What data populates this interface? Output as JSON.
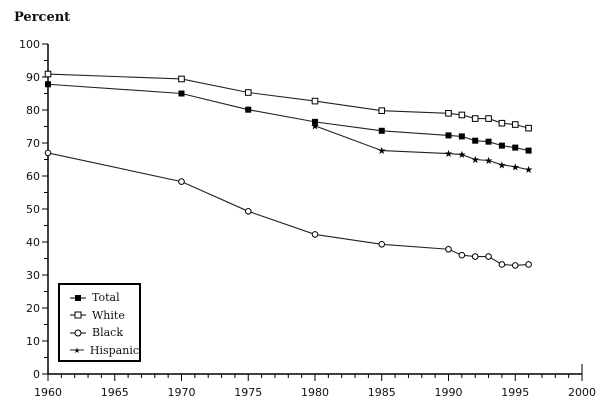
{
  "chart_data": {
    "type": "line",
    "title": "",
    "ylabel": "Percent",
    "xlabel": "",
    "xlim": [
      1960,
      2000
    ],
    "ylim": [
      0,
      100
    ],
    "xticks": [
      1960,
      1965,
      1970,
      1975,
      1980,
      1985,
      1990,
      1995,
      2000
    ],
    "yticks": [
      0,
      10,
      20,
      30,
      40,
      50,
      60,
      70,
      80,
      90,
      100
    ],
    "grid": false,
    "legend_position": "lower left",
    "series": [
      {
        "name": "Total",
        "marker": "filled-square",
        "x": [
          1960,
          1970,
          1975,
          1980,
          1985,
          1990,
          1991,
          1992,
          1993,
          1994,
          1995,
          1996
        ],
        "values": [
          87.8,
          85.0,
          80.1,
          76.4,
          73.7,
          72.3,
          72.0,
          70.7,
          70.4,
          69.2,
          68.6,
          67.7
        ]
      },
      {
        "name": "White",
        "marker": "open-square",
        "x": [
          1960,
          1970,
          1975,
          1980,
          1985,
          1990,
          1991,
          1992,
          1993,
          1994,
          1995,
          1996
        ],
        "values": [
          90.9,
          89.4,
          85.3,
          82.7,
          79.8,
          79.0,
          78.5,
          77.4,
          77.4,
          76.0,
          75.6,
          74.5
        ]
      },
      {
        "name": "Black",
        "marker": "open-circle",
        "x": [
          1960,
          1970,
          1975,
          1980,
          1985,
          1990,
          1991,
          1992,
          1993,
          1994,
          1995,
          1996
        ],
        "values": [
          67.0,
          58.3,
          49.3,
          42.3,
          39.3,
          37.8,
          36.0,
          35.6,
          35.6,
          33.2,
          32.9,
          33.2
        ]
      },
      {
        "name": "Hispanic",
        "marker": "star",
        "x": [
          1980,
          1985,
          1990,
          1991,
          1992,
          1993,
          1994,
          1995,
          1996
        ],
        "values": [
          75.2,
          67.7,
          66.8,
          66.5,
          65.0,
          64.7,
          63.4,
          62.8,
          61.9
        ]
      }
    ]
  },
  "labels": {
    "y_axis_title": "Percent"
  },
  "legend": [
    {
      "label": "Total",
      "marker": "filled-square"
    },
    {
      "label": "White",
      "marker": "open-square"
    },
    {
      "label": "Black",
      "marker": "open-circle"
    },
    {
      "label": "Hispanic",
      "marker": "star"
    }
  ]
}
